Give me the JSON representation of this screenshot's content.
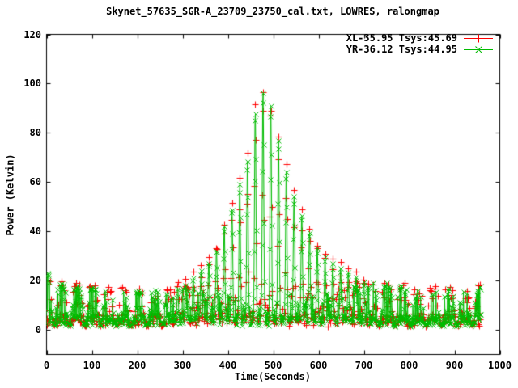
{
  "chart_data": {
    "type": "scatter",
    "title": "Skynet_57635_SGR-A_23709_23750_cal.txt, LOWRES, ralongmap",
    "xlabel": "Time(Seconds)",
    "ylabel": "Power (Kelvin)",
    "xlim": [
      0,
      1000
    ],
    "ylim": [
      -10,
      120
    ],
    "xticks": [
      0,
      100,
      200,
      300,
      400,
      500,
      600,
      700,
      800,
      900,
      1000
    ],
    "yticks": [
      0,
      20,
      40,
      60,
      80,
      100,
      120
    ],
    "grid": false,
    "legend_position": "top-right-inside",
    "axis_color": "#000000",
    "series": [
      {
        "name": "XL-35.95 Tsys:45.69",
        "color": "#ff0000",
        "marker": "plus"
      },
      {
        "name": "YR-36.12 Tsys:44.95",
        "color": "#00bb00",
        "marker": "x"
      }
    ],
    "description": "Raster scan (ralongmap) power vs time of SGR-A: periodic scan humps of 15-19 K with dips to ~2 K every ~34 s; narrow source spikes every ~17 s in the middle of the observation rising to ~100 K at t=478 s; data span 0-958 s.",
    "pattern": {
      "t_start": 0,
      "t_end": 958,
      "sample_step_green": 0.9,
      "sample_step_red": 1.3,
      "scan_period": 34.2,
      "first_hump_center": -1.2,
      "dip_base": 2.1,
      "dip_width_frac": 0.36,
      "flat_exponent": 6,
      "spike_spacing": 17.1,
      "spike_sigma": 2.3,
      "spike_t_range": [
        285,
        715
      ],
      "red_hump_offset": 0.9,
      "red_spike_offset": 2.5,
      "noise": 0.7
    },
    "hump_tops": [
      [
        0,
        24
      ],
      [
        33,
        18.5
      ],
      [
        67,
        17.5
      ],
      [
        101,
        17
      ],
      [
        135,
        16.4
      ],
      [
        169,
        15.8
      ],
      [
        203,
        15.5
      ],
      [
        237,
        15.8
      ],
      [
        271,
        16.4
      ],
      [
        305,
        16.8
      ],
      [
        340,
        15.5
      ],
      [
        375,
        14
      ],
      [
        410,
        13
      ],
      [
        445,
        11.5
      ],
      [
        480,
        11
      ],
      [
        515,
        11.5
      ],
      [
        550,
        12.5
      ],
      [
        585,
        13.5
      ],
      [
        620,
        14.5
      ],
      [
        655,
        16
      ],
      [
        690,
        18
      ],
      [
        720,
        19
      ],
      [
        755,
        18.5
      ],
      [
        790,
        17.5
      ],
      [
        825,
        17
      ],
      [
        860,
        16.5
      ],
      [
        900,
        16.3
      ],
      [
        935,
        16
      ],
      [
        956,
        17.5
      ],
      [
        958,
        17.5
      ]
    ],
    "spike_peaks": [
      [
        285,
        17
      ],
      [
        306.6,
        19
      ],
      [
        323.7,
        21
      ],
      [
        340.8,
        24
      ],
      [
        357.9,
        28
      ],
      [
        375,
        33
      ],
      [
        392.1,
        42
      ],
      [
        409.2,
        50
      ],
      [
        426.3,
        60
      ],
      [
        443.4,
        70
      ],
      [
        460.5,
        90
      ],
      [
        477.6,
        98
      ],
      [
        494.7,
        93
      ],
      [
        511.8,
        78
      ],
      [
        528.9,
        65
      ],
      [
        546,
        55
      ],
      [
        563.1,
        47
      ],
      [
        580.2,
        40
      ],
      [
        597.3,
        34
      ],
      [
        614.4,
        30
      ],
      [
        631.5,
        27
      ],
      [
        648.6,
        25
      ],
      [
        665.7,
        23
      ],
      [
        682.8,
        21
      ],
      [
        700,
        19.5
      ],
      [
        715,
        19
      ]
    ],
    "annotations": [
      {
        "type": "x-marker",
        "t": 954.5,
        "power": 17.2,
        "size": 5,
        "series": "YR"
      },
      {
        "type": "plus-marker",
        "t": 952.5,
        "power": 18.2,
        "size": 4,
        "series": "XL"
      }
    ]
  }
}
